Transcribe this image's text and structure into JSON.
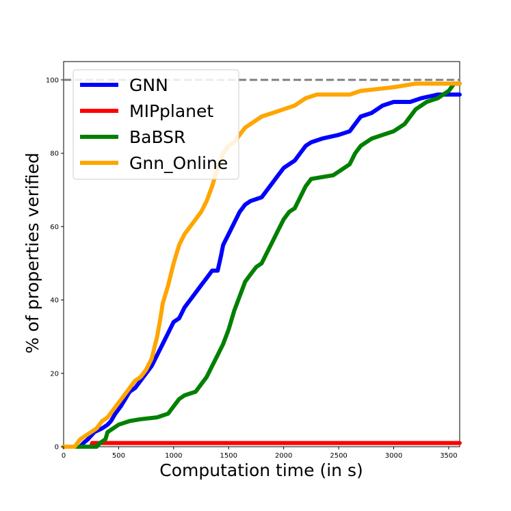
{
  "chart_data": {
    "type": "line",
    "title": "",
    "xlabel": "Computation time (in s)",
    "ylabel": "% of properties verified",
    "xlim": [
      0,
      3600
    ],
    "ylim": [
      0,
      105
    ],
    "x_ticks": [
      0,
      500,
      1000,
      1500,
      2000,
      2500,
      3000,
      3500
    ],
    "y_ticks": [
      0,
      20,
      40,
      60,
      80,
      100
    ],
    "grid": false,
    "legend": "top-left",
    "reference_line": {
      "y": 100,
      "color": "#808080",
      "style": "dashed"
    },
    "series": [
      {
        "name": "GNN",
        "color": "#0000ff",
        "points": [
          [
            0,
            0
          ],
          [
            150,
            0
          ],
          [
            180,
            1
          ],
          [
            220,
            2
          ],
          [
            250,
            3
          ],
          [
            280,
            4
          ],
          [
            350,
            5
          ],
          [
            400,
            6
          ],
          [
            430,
            7
          ],
          [
            470,
            9
          ],
          [
            520,
            11
          ],
          [
            560,
            13
          ],
          [
            600,
            15
          ],
          [
            650,
            16
          ],
          [
            700,
            18
          ],
          [
            750,
            20
          ],
          [
            800,
            22
          ],
          [
            850,
            25
          ],
          [
            900,
            28
          ],
          [
            950,
            31
          ],
          [
            1000,
            34
          ],
          [
            1050,
            35
          ],
          [
            1100,
            38
          ],
          [
            1150,
            40
          ],
          [
            1200,
            42
          ],
          [
            1250,
            44
          ],
          [
            1300,
            46
          ],
          [
            1350,
            48
          ],
          [
            1400,
            48
          ],
          [
            1430,
            52
          ],
          [
            1450,
            55
          ],
          [
            1500,
            58
          ],
          [
            1550,
            61
          ],
          [
            1600,
            64
          ],
          [
            1650,
            66
          ],
          [
            1700,
            67
          ],
          [
            1800,
            68
          ],
          [
            1850,
            70
          ],
          [
            1900,
            72
          ],
          [
            1950,
            74
          ],
          [
            2000,
            76
          ],
          [
            2050,
            77
          ],
          [
            2100,
            78
          ],
          [
            2150,
            80
          ],
          [
            2200,
            82
          ],
          [
            2250,
            83
          ],
          [
            2350,
            84
          ],
          [
            2500,
            85
          ],
          [
            2600,
            86
          ],
          [
            2650,
            88
          ],
          [
            2700,
            90
          ],
          [
            2800,
            91
          ],
          [
            2900,
            93
          ],
          [
            3000,
            94
          ],
          [
            3150,
            94
          ],
          [
            3250,
            95
          ],
          [
            3400,
            96
          ],
          [
            3600,
            96
          ]
        ]
      },
      {
        "name": "MIPplanet",
        "color": "#ff0000",
        "points": [
          [
            0,
            0
          ],
          [
            250,
            0
          ],
          [
            260,
            1
          ],
          [
            3600,
            1
          ]
        ]
      },
      {
        "name": "BaBSR",
        "color": "#008000",
        "points": [
          [
            0,
            0
          ],
          [
            300,
            0
          ],
          [
            330,
            1
          ],
          [
            380,
            2
          ],
          [
            400,
            4
          ],
          [
            450,
            5
          ],
          [
            500,
            6
          ],
          [
            600,
            7
          ],
          [
            700,
            7.5
          ],
          [
            850,
            8
          ],
          [
            950,
            9
          ],
          [
            1000,
            11
          ],
          [
            1050,
            13
          ],
          [
            1100,
            14
          ],
          [
            1200,
            15
          ],
          [
            1250,
            17
          ],
          [
            1300,
            19
          ],
          [
            1350,
            22
          ],
          [
            1400,
            25
          ],
          [
            1450,
            28
          ],
          [
            1500,
            32
          ],
          [
            1550,
            37
          ],
          [
            1600,
            41
          ],
          [
            1650,
            45
          ],
          [
            1700,
            47
          ],
          [
            1750,
            49
          ],
          [
            1800,
            50
          ],
          [
            1850,
            53
          ],
          [
            1900,
            56
          ],
          [
            1950,
            59
          ],
          [
            2000,
            62
          ],
          [
            2050,
            64
          ],
          [
            2100,
            65
          ],
          [
            2150,
            68
          ],
          [
            2200,
            71
          ],
          [
            2250,
            73
          ],
          [
            2450,
            74
          ],
          [
            2500,
            75
          ],
          [
            2600,
            77
          ],
          [
            2650,
            80
          ],
          [
            2700,
            82
          ],
          [
            2800,
            84
          ],
          [
            2900,
            85
          ],
          [
            3000,
            86
          ],
          [
            3100,
            88
          ],
          [
            3200,
            92
          ],
          [
            3300,
            94
          ],
          [
            3400,
            95
          ],
          [
            3500,
            97
          ],
          [
            3550,
            99
          ],
          [
            3600,
            99
          ]
        ]
      },
      {
        "name": "Gnn_Online",
        "color": "#ffa500",
        "points": [
          [
            0,
            0
          ],
          [
            100,
            0
          ],
          [
            150,
            2
          ],
          [
            200,
            3
          ],
          [
            250,
            4
          ],
          [
            300,
            5
          ],
          [
            350,
            7
          ],
          [
            400,
            8
          ],
          [
            450,
            10
          ],
          [
            500,
            12
          ],
          [
            550,
            14
          ],
          [
            600,
            16
          ],
          [
            650,
            18
          ],
          [
            700,
            19
          ],
          [
            750,
            21
          ],
          [
            800,
            24
          ],
          [
            850,
            30
          ],
          [
            880,
            35
          ],
          [
            900,
            39
          ],
          [
            950,
            44
          ],
          [
            1000,
            50
          ],
          [
            1050,
            55
          ],
          [
            1100,
            58
          ],
          [
            1150,
            60
          ],
          [
            1200,
            62
          ],
          [
            1250,
            64
          ],
          [
            1300,
            67
          ],
          [
            1350,
            71
          ],
          [
            1400,
            76
          ],
          [
            1450,
            80
          ],
          [
            1500,
            82
          ],
          [
            1550,
            83
          ],
          [
            1600,
            85
          ],
          [
            1650,
            87
          ],
          [
            1700,
            88
          ],
          [
            1750,
            89
          ],
          [
            1800,
            90
          ],
          [
            1900,
            91
          ],
          [
            2000,
            92
          ],
          [
            2100,
            93
          ],
          [
            2200,
            95
          ],
          [
            2300,
            96
          ],
          [
            2600,
            96
          ],
          [
            2700,
            97
          ],
          [
            3000,
            98
          ],
          [
            3200,
            99
          ],
          [
            3600,
            99
          ]
        ]
      }
    ]
  }
}
